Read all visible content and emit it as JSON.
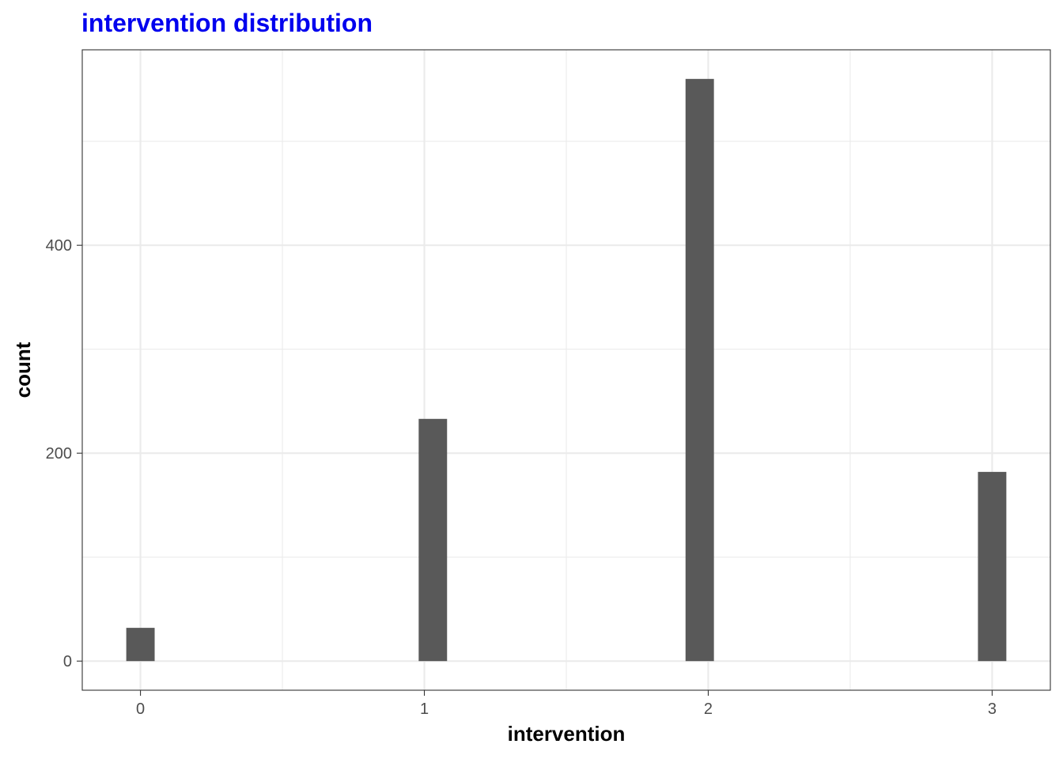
{
  "chart_data": {
    "type": "bar",
    "title": "intervention distribution",
    "xlabel": "intervention",
    "ylabel": "count",
    "x": [
      0,
      1,
      2,
      3
    ],
    "values": [
      32,
      233,
      560,
      182
    ],
    "x_ticks": [
      "0",
      "1",
      "2",
      "3"
    ],
    "y_ticks": [
      "0",
      "200",
      "400"
    ],
    "xlim": [
      -0.205,
      3.205
    ],
    "ylim": [
      -28,
      588
    ],
    "grid": true,
    "legend": "none",
    "bar_color": "#595959",
    "title_color": "#0000ee"
  }
}
